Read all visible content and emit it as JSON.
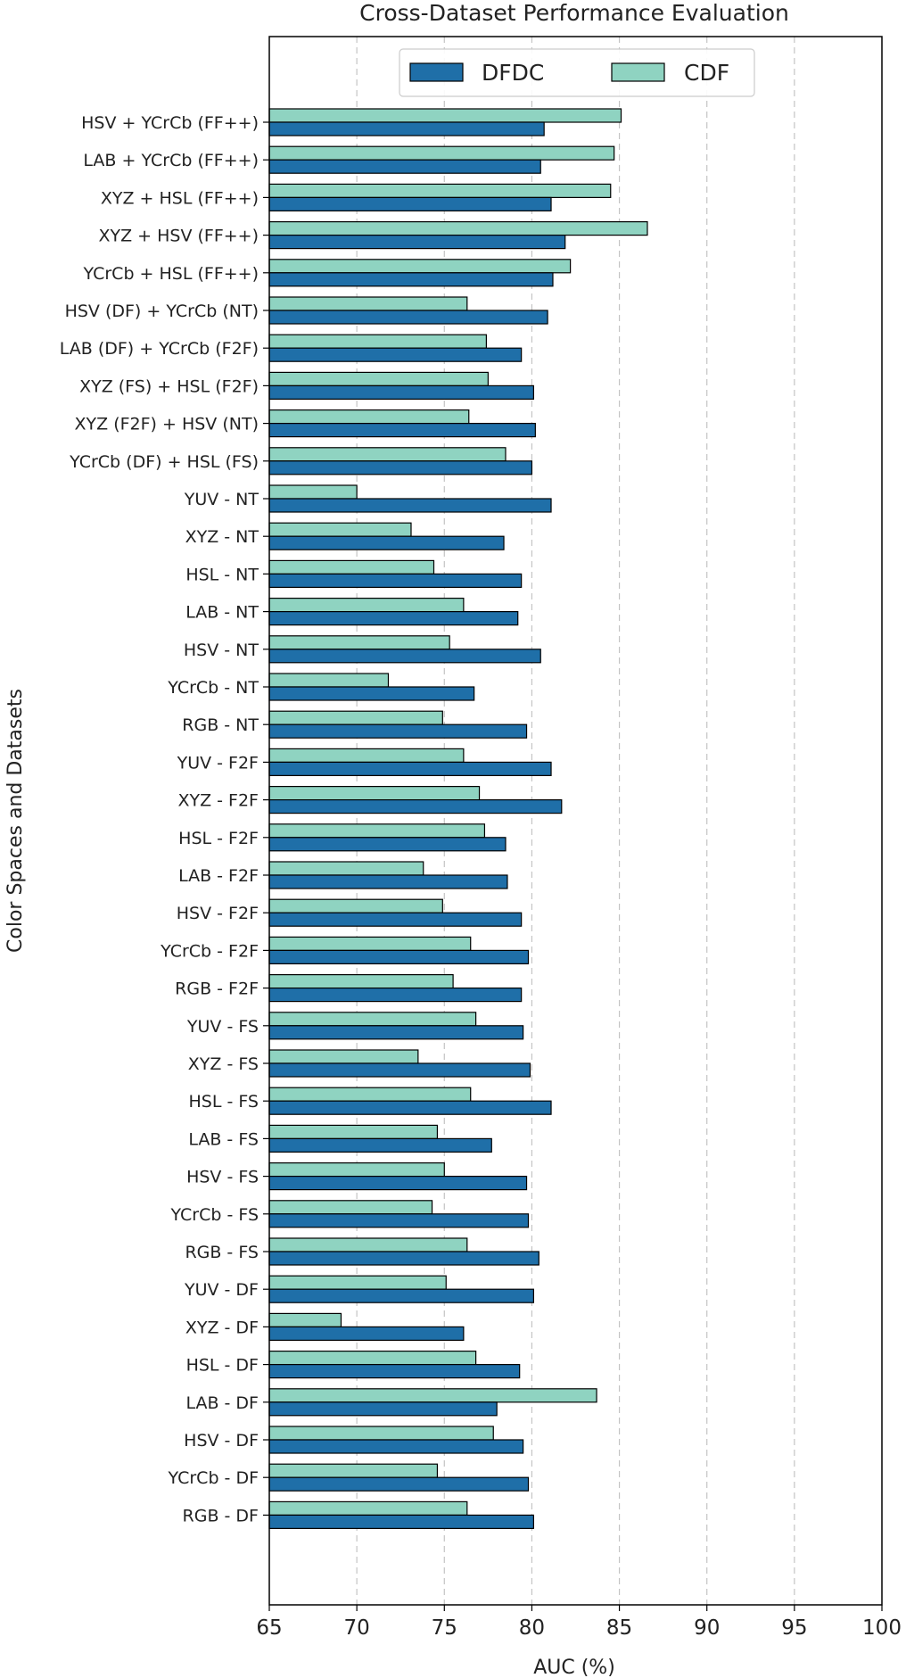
{
  "chart_data": {
    "type": "bar",
    "orientation": "horizontal",
    "title": "Cross-Dataset Performance Evaluation",
    "xlabel": "AUC (%)",
    "ylabel": "Color Spaces and Datasets",
    "xlim": [
      65,
      100
    ],
    "xticks": [
      "65",
      "70",
      "75",
      "80",
      "85",
      "90",
      "95",
      "100"
    ],
    "grid": "x, dashed",
    "legend_position": "top",
    "categories": [
      "HSV + YCrCb (FF++)",
      "LAB + YCrCb (FF++)",
      "XYZ + HSL (FF++)",
      "XYZ + HSV (FF++)",
      "YCrCb + HSL (FF++)",
      "HSV (DF) + YCrCb (NT)",
      "LAB (DF) + YCrCb (F2F)",
      "XYZ (FS) + HSL (F2F)",
      "XYZ (F2F) + HSV (NT)",
      "YCrCb (DF) + HSL (FS)",
      "YUV - NT",
      "XYZ - NT",
      "HSL - NT",
      "LAB - NT",
      "HSV - NT",
      "YCrCb - NT",
      "RGB - NT",
      "YUV - F2F",
      "XYZ - F2F",
      "HSL - F2F",
      "LAB - F2F",
      "HSV - F2F",
      "YCrCb - F2F",
      "RGB - F2F",
      "YUV - FS",
      "XYZ - FS",
      "HSL - FS",
      "LAB - FS",
      "HSV - FS",
      "YCrCb - FS",
      "RGB - FS",
      "YUV - DF",
      "XYZ - DF",
      "HSL - DF",
      "LAB - DF",
      "HSV - DF",
      "YCrCb - DF",
      "RGB - DF"
    ],
    "series": [
      {
        "name": "DFDC",
        "color": "#1f6fa8",
        "values": [
          80.7,
          80.5,
          81.1,
          81.9,
          81.2,
          80.9,
          79.4,
          80.1,
          80.2,
          80.0,
          81.1,
          78.4,
          79.4,
          79.2,
          80.5,
          76.7,
          79.7,
          81.1,
          81.7,
          78.5,
          78.6,
          79.4,
          79.8,
          79.4,
          79.5,
          79.9,
          81.1,
          77.7,
          79.7,
          79.8,
          80.4,
          80.1,
          76.1,
          79.3,
          78.0,
          79.5,
          79.8,
          80.1
        ]
      },
      {
        "name": "CDF",
        "color": "#8fd3c1",
        "values": [
          85.1,
          84.7,
          84.5,
          86.6,
          82.2,
          76.3,
          77.4,
          77.5,
          76.4,
          78.5,
          70.0,
          73.1,
          74.4,
          76.1,
          75.3,
          71.8,
          74.9,
          76.1,
          77.0,
          77.3,
          73.8,
          74.9,
          76.5,
          75.5,
          76.8,
          73.5,
          76.5,
          74.6,
          75.0,
          74.3,
          76.3,
          75.1,
          69.1,
          76.8,
          83.7,
          77.8,
          74.6,
          76.3
        ]
      }
    ]
  }
}
